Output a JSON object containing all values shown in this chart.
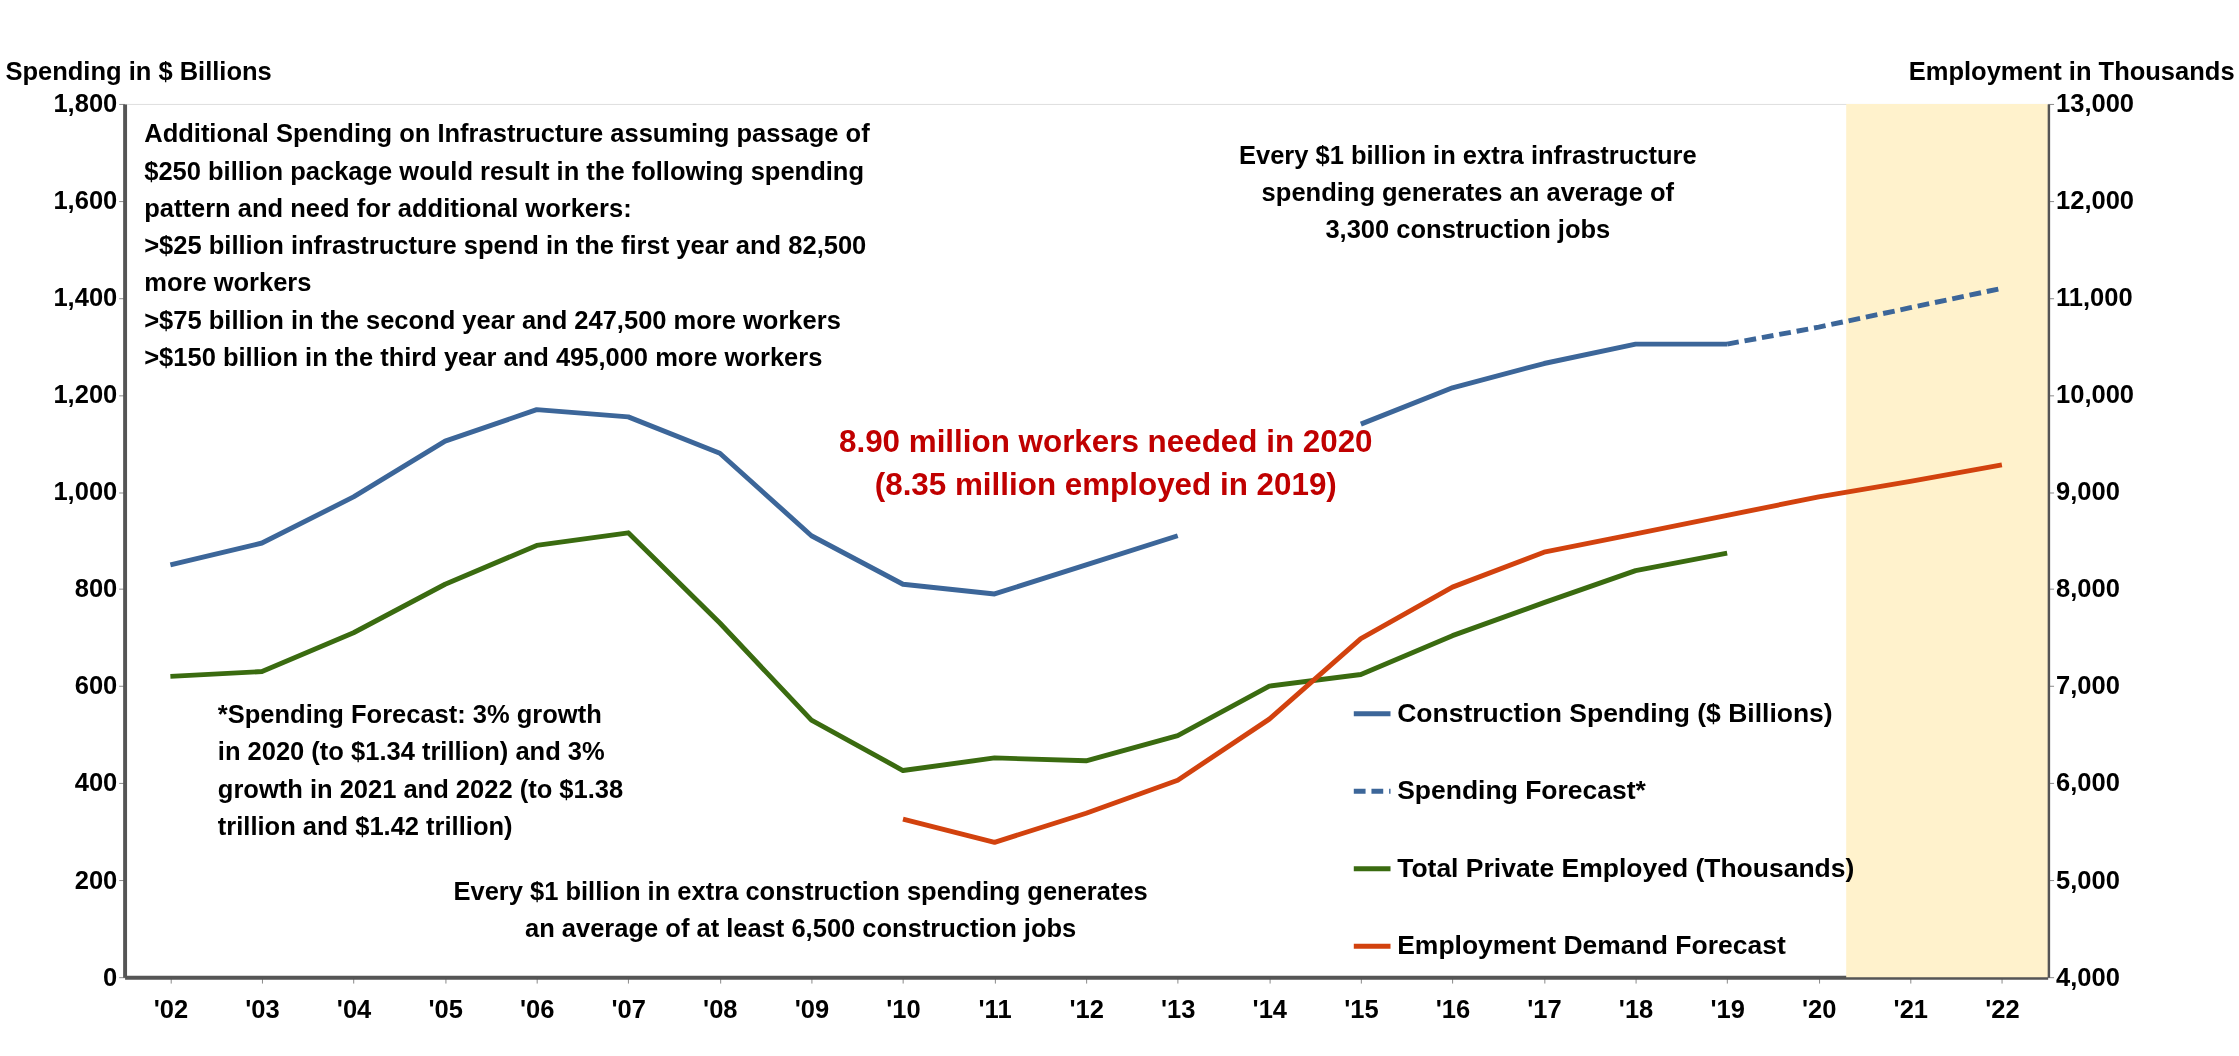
{
  "chart_data": {
    "type": "line",
    "ylabel": "Spending in $ Billions",
    "y2label": "Employment in Thousands",
    "xlim": [
      2001.5,
      2022.5
    ],
    "xticks": [
      {
        "value": 2002,
        "label": "'02"
      },
      {
        "value": 2003,
        "label": "'03"
      },
      {
        "value": 2004,
        "label": "'04"
      },
      {
        "value": 2005,
        "label": "'05"
      },
      {
        "value": 2006,
        "label": "'06"
      },
      {
        "value": 2007,
        "label": "'07"
      },
      {
        "value": 2008,
        "label": "'08"
      },
      {
        "value": 2009,
        "label": "'09"
      },
      {
        "value": 2010,
        "label": "'10"
      },
      {
        "value": 2011,
        "label": "'11"
      },
      {
        "value": 2012,
        "label": "'12"
      },
      {
        "value": 2013,
        "label": "'13"
      },
      {
        "value": 2014,
        "label": "'14"
      },
      {
        "value": 2015,
        "label": "'15"
      },
      {
        "value": 2016,
        "label": "'16"
      },
      {
        "value": 2017,
        "label": "'17"
      },
      {
        "value": 2018,
        "label": "'18"
      },
      {
        "value": 2019,
        "label": "'19"
      },
      {
        "value": 2020,
        "label": "'20"
      },
      {
        "value": 2021,
        "label": "'21"
      },
      {
        "value": 2022,
        "label": "'22"
      }
    ],
    "ylim": [
      0,
      1800
    ],
    "yticks": [
      {
        "value": 0,
        "label": "0"
      },
      {
        "value": 200,
        "label": "200"
      },
      {
        "value": 400,
        "label": "400"
      },
      {
        "value": 600,
        "label": "600"
      },
      {
        "value": 800,
        "label": "800"
      },
      {
        "value": 1000,
        "label": "1,000"
      },
      {
        "value": 1200,
        "label": "1,200"
      },
      {
        "value": 1400,
        "label": "1,400"
      },
      {
        "value": 1600,
        "label": "1,600"
      },
      {
        "value": 1800,
        "label": "1,800"
      }
    ],
    "y2lim": [
      4000,
      13000
    ],
    "y2ticks": [
      {
        "value": 4000,
        "label": "4,000"
      },
      {
        "value": 5000,
        "label": "5,000"
      },
      {
        "value": 6000,
        "label": "6,000"
      },
      {
        "value": 7000,
        "label": "7,000"
      },
      {
        "value": 8000,
        "label": "8,000"
      },
      {
        "value": 9000,
        "label": "9,000"
      },
      {
        "value": 10000,
        "label": "10,000"
      },
      {
        "value": 11000,
        "label": "11,000"
      },
      {
        "value": 12000,
        "label": "12,000"
      },
      {
        "value": 13000,
        "label": "13,000"
      }
    ],
    "series": [
      {
        "name": "Construction Spending ($ Billions)",
        "color": "#3c6699",
        "axis": "y",
        "line_style": "solid",
        "x": [
          2002,
          2003,
          2004,
          2005,
          2006,
          2007,
          2008,
          2009,
          2010,
          2011,
          2012,
          2013,
          2014,
          2015,
          2016,
          2017,
          2018,
          2019
        ],
        "values": [
          850,
          895,
          990,
          1105,
          1170,
          1155,
          1080,
          910,
          810,
          790,
          850,
          910,
          null,
          1140,
          1215,
          1265,
          1305,
          1305
        ]
      },
      {
        "name": "Spending Forecast*",
        "color": "#3c6699",
        "axis": "y",
        "line_style": "dashed",
        "x": [
          2019,
          2020,
          2021,
          2022
        ],
        "values": [
          1305,
          1340,
          1380,
          1420
        ]
      },
      {
        "name": "Total Private Employed (Thousands)",
        "color": "#3a6b10",
        "axis": "y2",
        "line_style": "solid",
        "x": [
          2002,
          2003,
          2004,
          2005,
          2006,
          2007,
          2008,
          2009,
          2010,
          2011,
          2012,
          2013,
          2014,
          2015,
          2016,
          2017,
          2018,
          2019
        ],
        "values": [
          7100,
          7150,
          7550,
          8050,
          8450,
          8580,
          7650,
          6650,
          6130,
          6260,
          6230,
          6490,
          7000,
          7120,
          7520,
          7860,
          8190,
          8370
        ]
      },
      {
        "name": "Employment Demand Forecast",
        "color": "#d2420e",
        "axis": "y2",
        "line_style": "solid",
        "x": [
          2010,
          2011,
          2012,
          2013,
          2014,
          2015,
          2016,
          2017,
          2018,
          2019,
          2020,
          2021,
          2022
        ],
        "values": [
          5630,
          5390,
          5690,
          6030,
          6660,
          7490,
          8020,
          8380,
          8570,
          8760,
          8950,
          9110,
          9280
        ]
      }
    ],
    "bands": [
      {
        "axis": "x",
        "from": 2020.3,
        "to": 2022.5,
        "color": "#fff2cc"
      }
    ],
    "annotations": [
      "Additional Spending on Infrastructure assuming passage of\n$250 billion package would result in the following spending\npattern and need for additional workers:\n\n>$25 billion infrastructure spend in the first year and 82,500\n   more workers\n>$75 billion in the second year and 247,500 more workers\n>$150 billion in the third year and 495,000 more workers",
      "Every $1 billion in extra infrastructure\nspending generates an average of\n3,300 construction jobs",
      "8.90 million workers needed in 2020\n(8.35 million employed in 2019)",
      "*Spending Forecast: 3% growth\nin 2020 (to $1.34 trillion) and 3%\ngrowth in 2021 and 2022 (to $1.38\ntrillion and $1.42 trillion)",
      "Every $1 billion in extra construction spending generates\nan average of at least 6,500 construction jobs"
    ],
    "legend": "bottom right",
    "grid": false
  }
}
